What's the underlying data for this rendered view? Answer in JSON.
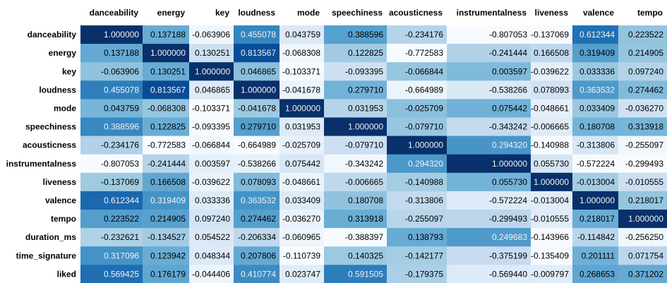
{
  "chart_data": {
    "type": "heatmap",
    "columns": [
      "danceability",
      "energy",
      "key",
      "loudness",
      "mode",
      "speechiness",
      "acousticness",
      "instrumentalness",
      "liveness",
      "valence",
      "tempo"
    ],
    "rows": [
      {
        "label": "danceability",
        "values": [
          "1.000000",
          "0.137188",
          "-0.063906",
          "0.455078",
          "0.043759",
          "0.388596",
          "-0.234176",
          "-0.807053",
          "-0.137069",
          "0.612344",
          "0.223522"
        ]
      },
      {
        "label": "energy",
        "values": [
          "0.137188",
          "1.000000",
          "0.130251",
          "0.813567",
          "-0.068308",
          "0.122825",
          "-0.772583",
          "-0.241444",
          "0.166508",
          "0.319409",
          "0.214905"
        ]
      },
      {
        "label": "key",
        "values": [
          "-0.063906",
          "0.130251",
          "1.000000",
          "0.046865",
          "-0.103371",
          "-0.093395",
          "-0.066844",
          "0.003597",
          "-0.039622",
          "0.033336",
          "0.097240"
        ]
      },
      {
        "label": "loudness",
        "values": [
          "0.455078",
          "0.813567",
          "0.046865",
          "1.000000",
          "-0.041678",
          "0.279710",
          "-0.664989",
          "-0.538266",
          "0.078093",
          "0.363532",
          "0.274462"
        ]
      },
      {
        "label": "mode",
        "values": [
          "0.043759",
          "-0.068308",
          "-0.103371",
          "-0.041678",
          "1.000000",
          "0.031953",
          "-0.025709",
          "0.075442",
          "-0.048661",
          "0.033409",
          "-0.036270"
        ]
      },
      {
        "label": "speechiness",
        "values": [
          "0.388596",
          "0.122825",
          "-0.093395",
          "0.279710",
          "0.031953",
          "1.000000",
          "-0.079710",
          "-0.343242",
          "-0.006665",
          "0.180708",
          "0.313918"
        ]
      },
      {
        "label": "acousticness",
        "values": [
          "-0.234176",
          "-0.772583",
          "-0.066844",
          "-0.664989",
          "-0.025709",
          "-0.079710",
          "1.000000",
          "0.294320",
          "-0.140988",
          "-0.313806",
          "-0.255097"
        ]
      },
      {
        "label": "instrumentalness",
        "values": [
          "-0.807053",
          "-0.241444",
          "0.003597",
          "-0.538266",
          "0.075442",
          "-0.343242",
          "0.294320",
          "1.000000",
          "0.055730",
          "-0.572224",
          "-0.299493"
        ]
      },
      {
        "label": "liveness",
        "values": [
          "-0.137069",
          "0.166508",
          "-0.039622",
          "0.078093",
          "-0.048661",
          "-0.006665",
          "-0.140988",
          "0.055730",
          "1.000000",
          "-0.013004",
          "-0.010555"
        ]
      },
      {
        "label": "valence",
        "values": [
          "0.612344",
          "0.319409",
          "0.033336",
          "0.363532",
          "0.033409",
          "0.180708",
          "-0.313806",
          "-0.572224",
          "-0.013004",
          "1.000000",
          "0.218017"
        ]
      },
      {
        "label": "tempo",
        "values": [
          "0.223522",
          "0.214905",
          "0.097240",
          "0.274462",
          "-0.036270",
          "0.313918",
          "-0.255097",
          "-0.299493",
          "-0.010555",
          "0.218017",
          "1.000000"
        ]
      },
      {
        "label": "duration_ms",
        "values": [
          "-0.232621",
          "-0.134527",
          "0.054522",
          "-0.206334",
          "-0.060965",
          "-0.388397",
          "0.138793",
          "0.249683",
          "-0.143966",
          "-0.114842",
          "-0.256250"
        ]
      },
      {
        "label": "time_signature",
        "values": [
          "0.317096",
          "0.123942",
          "0.048344",
          "0.207806",
          "-0.110739",
          "0.140325",
          "-0.142177",
          "-0.375199",
          "-0.135409",
          "0.201111",
          "0.071754"
        ]
      },
      {
        "label": "liked",
        "values": [
          "0.569425",
          "0.176179",
          "-0.044406",
          "0.410774",
          "0.023747",
          "0.591505",
          "-0.179375",
          "-0.569440",
          "-0.009797",
          "0.268653",
          "0.371202"
        ]
      }
    ],
    "colormap": "Blues",
    "text_color_light": "#f1f1f1",
    "text_color_dark": "#000000"
  }
}
